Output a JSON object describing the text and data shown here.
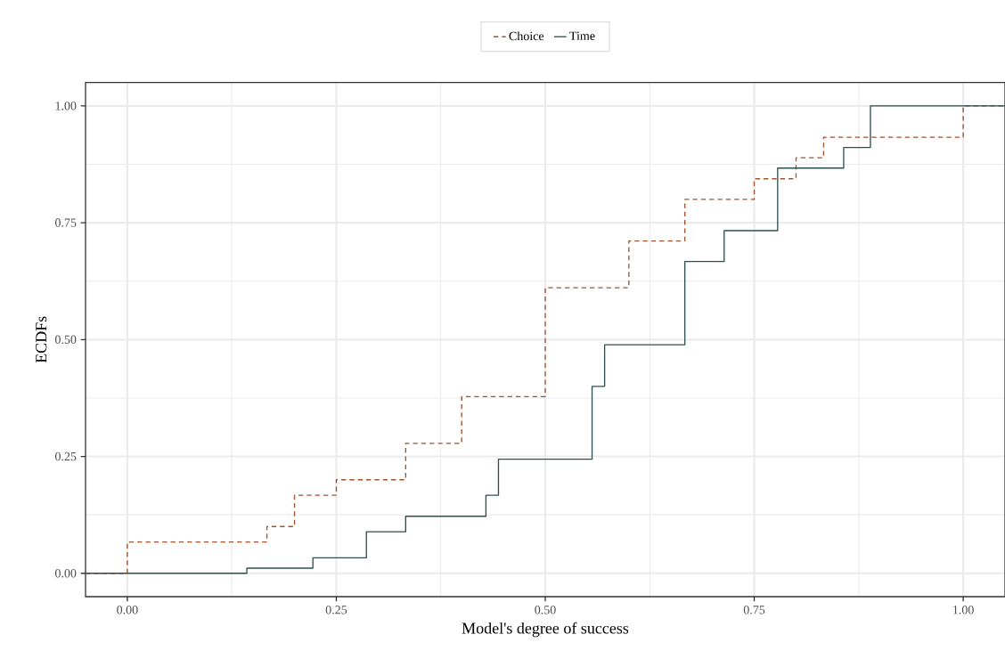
{
  "chart_data": {
    "type": "step",
    "xlabel": "Model's degree of success",
    "ylabel": "ECDFs",
    "series": [
      {
        "name": "Choice",
        "color": "#a0522d",
        "line_style": "dashed",
        "x": [
          -0.05,
          0,
          0.167,
          0.2,
          0.25,
          0.333,
          0.4,
          0.5,
          0.6,
          0.667,
          0.75,
          0.8,
          0.833,
          1.0,
          1.05
        ],
        "values": [
          0,
          0.067,
          0.1,
          0.167,
          0.2,
          0.278,
          0.378,
          0.611,
          0.711,
          0.8,
          0.844,
          0.889,
          0.933,
          1,
          1
        ]
      },
      {
        "name": "Time",
        "color": "#2f4f4f",
        "line_style": "solid",
        "x": [
          -0.05,
          0.143,
          0.222,
          0.286,
          0.333,
          0.429,
          0.444,
          0.556,
          0.571,
          0.667,
          0.714,
          0.778,
          0.857,
          0.889,
          1.05
        ],
        "values": [
          0,
          0.011,
          0.033,
          0.089,
          0.122,
          0.167,
          0.244,
          0.4,
          0.489,
          0.667,
          0.733,
          0.867,
          0.911,
          1,
          1
        ]
      }
    ],
    "xlim": [
      -0.05,
      1.05
    ],
    "ylim": [
      -0.05,
      1.05
    ],
    "xticks": [
      {
        "value": 0,
        "label": "0.00"
      },
      {
        "value": 0.25,
        "label": "0.25"
      },
      {
        "value": 0.5,
        "label": "0.50"
      },
      {
        "value": 0.75,
        "label": "0.75"
      },
      {
        "value": 1,
        "label": "1.00"
      }
    ],
    "yticks": [
      {
        "value": 0,
        "label": "0.00"
      },
      {
        "value": 0.25,
        "label": "0.25"
      },
      {
        "value": 0.5,
        "label": "0.50"
      },
      {
        "value": 0.75,
        "label": "0.75"
      },
      {
        "value": 1,
        "label": "1.00"
      }
    ],
    "grid": true,
    "legend": "top"
  }
}
